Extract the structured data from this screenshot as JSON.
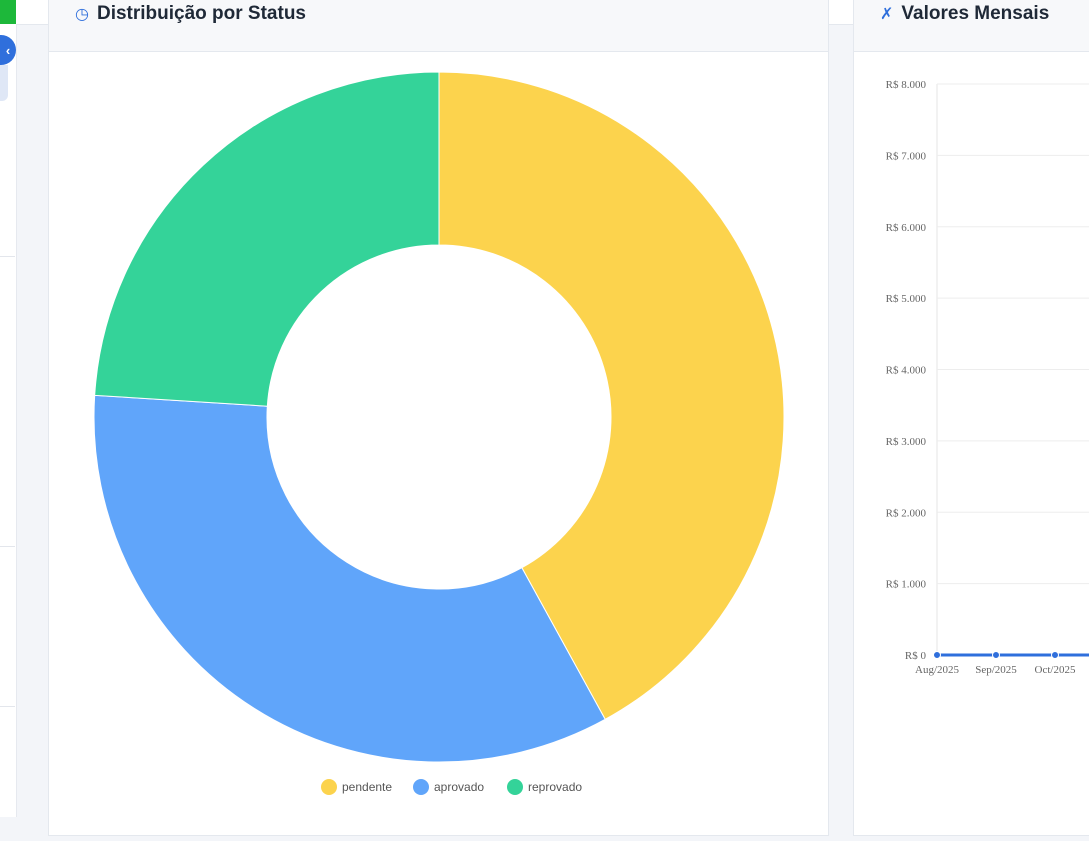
{
  "sidebar": {
    "collapse_icon": "chevron-left-icon"
  },
  "cards": {
    "status": {
      "title": "Distribuição por Status",
      "icon": "pie-chart-icon"
    },
    "valores": {
      "title": "Valores Mensais",
      "icon": "chart-icon"
    }
  },
  "colors": {
    "pendente": "#fcd34d",
    "aprovado": "#60a5fa",
    "reprovado": "#34d399",
    "line": "#2f6fdc",
    "accent": "#2f6fdc"
  },
  "chart_data": [
    {
      "type": "doughnut",
      "categories": [
        "pendente",
        "aprovado",
        "reprovado"
      ],
      "values": [
        42,
        34,
        24
      ],
      "legend": [
        "pendente",
        "aprovado",
        "reprovado"
      ],
      "legend_position": "bottom"
    },
    {
      "type": "line",
      "x": [
        "Aug/2025",
        "Sep/2025",
        "Oct/2025"
      ],
      "series": [
        {
          "values": [
            0,
            0,
            0
          ]
        }
      ],
      "ylim": [
        0,
        8000
      ],
      "y_ticks": [
        "R$ 0",
        "R$ 1.000",
        "R$ 2.000",
        "R$ 3.000",
        "R$ 4.000",
        "R$ 5.000",
        "R$ 6.000",
        "R$ 7.000",
        "R$ 8.000"
      ],
      "grid": true
    }
  ]
}
